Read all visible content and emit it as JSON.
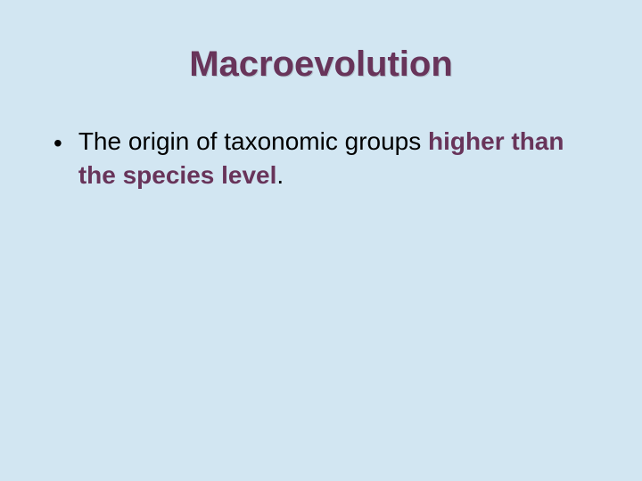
{
  "slide": {
    "background_color": "#d2e6f2",
    "title": {
      "text": "Macroevolution",
      "color": "#68345a",
      "font_size_pt": 40,
      "font_weight": "bold",
      "alignment": "center"
    },
    "bullets": [
      {
        "marker": "•",
        "pre_text": "The origin of taxonomic groups ",
        "emphasis_text": "higher than the species level",
        "post_text": "."
      }
    ],
    "body_font_size_pt": 28,
    "body_text_color": "#000000",
    "emphasis_color": "#68345a"
  }
}
